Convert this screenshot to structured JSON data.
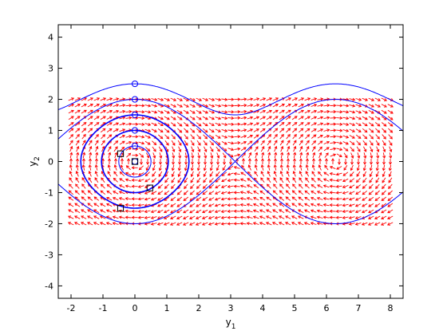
{
  "chart_data": {
    "type": "phase_portrait",
    "title": "",
    "xlabel": {
      "base": "y",
      "sub": "1"
    },
    "ylabel": {
      "base": "y",
      "sub": "2"
    },
    "xlim": [
      -2.4,
      8.4
    ],
    "ylim": [
      -4.4,
      4.4
    ],
    "xticks": [
      -2,
      -1,
      0,
      1,
      2,
      3,
      4,
      5,
      6,
      7,
      8
    ],
    "yticks": [
      -4,
      -3,
      -2,
      -1,
      0,
      1,
      2,
      3,
      4
    ],
    "grid": false,
    "legend": null,
    "system": "pendulum: y1' = y2, y2' = -sin(y1)",
    "direction_field": {
      "color": "#ff0000",
      "y1_range": [
        -2,
        8
      ],
      "y2_range": [
        -2,
        2
      ],
      "grid_step": 0.2,
      "arrow_length": 0.09
    },
    "trajectories": {
      "color": "#0000ff",
      "series": [
        {
          "initial": [
            0,
            0.0
          ],
          "energy_radius": 0.0
        },
        {
          "initial": [
            0,
            0.5
          ],
          "energy_radius": 0.5
        },
        {
          "initial": [
            0,
            1.0
          ],
          "energy_radius": 1.0
        },
        {
          "initial": [
            0,
            1.5
          ],
          "energy_radius": 1.5
        },
        {
          "initial": [
            0,
            2.0
          ],
          "energy_radius": 2.0,
          "kind": "separatrix"
        },
        {
          "initial": [
            0,
            2.5
          ],
          "energy_radius": 2.5,
          "kind": "rotation"
        }
      ]
    },
    "start_markers": {
      "shape": "circle",
      "color": "#0000ff",
      "points": [
        [
          0,
          0
        ],
        [
          0,
          0.5
        ],
        [
          0,
          1.0
        ],
        [
          0,
          1.5
        ],
        [
          0,
          2.0
        ],
        [
          0,
          2.5
        ]
      ]
    },
    "end_markers": {
      "shape": "square",
      "color": "#000000",
      "points": [
        [
          0,
          0
        ],
        [
          -0.45,
          0.25
        ],
        [
          0.47,
          -0.85
        ],
        [
          -0.45,
          -1.5
        ]
      ]
    }
  }
}
